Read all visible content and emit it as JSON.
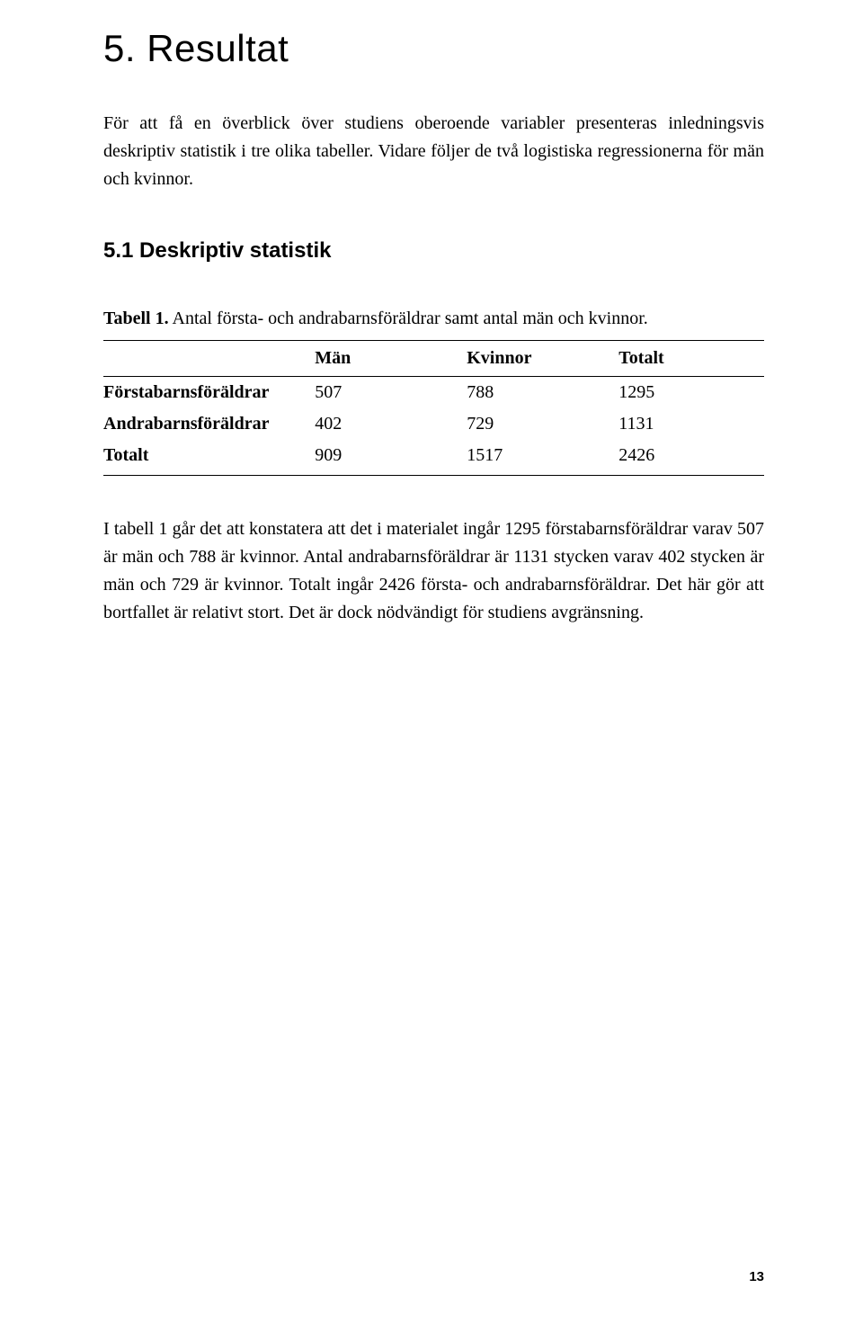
{
  "section": {
    "title": "5. Resultat",
    "intro": "För att få en överblick över studiens oberoende variabler presenteras inledningsvis deskriptiv statistik i tre olika tabeller. Vidare följer de två logistiska regressionerna för män och kvinnor."
  },
  "subsection": {
    "title": "5.1 Deskriptiv statistik"
  },
  "table1": {
    "caption_label": "Tabell 1.",
    "caption_text": " Antal första- och andrabarnsföräldrar samt antal män och kvinnor.",
    "columns": [
      "",
      "Män",
      "Kvinnor",
      "Totalt"
    ],
    "col_widths": [
      "32%",
      "23%",
      "23%",
      "22%"
    ],
    "rows": [
      {
        "label": "Förstabarnsföräldrar",
        "values": [
          "507",
          "788",
          "1295"
        ]
      },
      {
        "label": "Andrabarnsföräldrar",
        "values": [
          "402",
          "729",
          "1131"
        ]
      },
      {
        "label": "Totalt",
        "values": [
          "909",
          "1517",
          "2426"
        ]
      }
    ],
    "border_color": "#000000",
    "font_size_pt": 15,
    "header_fontweight": "700"
  },
  "paragraph_after_table": "I tabell 1 går det att konstatera att det i materialet ingår 1295 förstabarnsföräldrar varav 507 är män och 788 är kvinnor. Antal andrabarnsföräldrar är 1131 stycken varav 402 stycken är män och 729 är kvinnor. Totalt ingår 2426 första- och andrabarnsföräldrar. Det här gör att bortfallet är relativt stort. Det är dock nödvändigt för studiens avgränsning.",
  "page_number": "13",
  "colors": {
    "background": "#ffffff",
    "text": "#000000"
  },
  "fonts": {
    "heading_family": "Verdana",
    "body_family": "Times New Roman"
  }
}
